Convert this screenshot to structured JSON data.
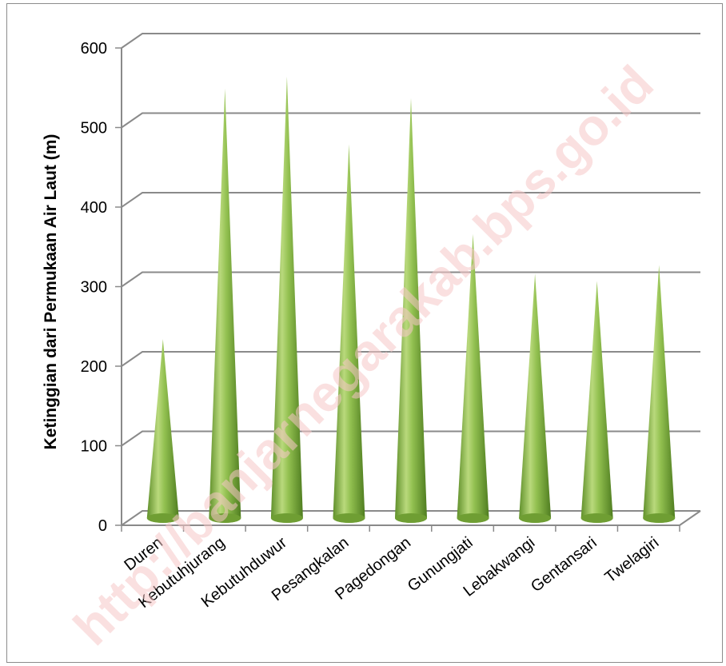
{
  "chart_data": {
    "type": "bar",
    "bar_shape": "cone",
    "categories": [
      "Duren",
      "Kebutuhjurang",
      "Kebutuhduwur",
      "Pesangkalan",
      "Pagedongan",
      "Gunungjati",
      "Lebakwangi",
      "Gentansari",
      "Twelagiri"
    ],
    "values": [
      225,
      540,
      555,
      470,
      528,
      357,
      307,
      298,
      318
    ],
    "title": "",
    "xlabel": "",
    "ylabel": "Ketinggian dari Permukaan Air Laut (m)",
    "ylim": [
      0,
      600
    ],
    "yticks": [
      0,
      100,
      200,
      300,
      400,
      500,
      600
    ],
    "grid": true,
    "legend": "none",
    "colors": {
      "bar_light": "#c5e08a",
      "bar_mid": "#92c050",
      "bar_dark": "#5f8f2a",
      "grid": "#8a8a8a"
    }
  },
  "watermark": "http://banjarnegarakab.bps.go.id"
}
